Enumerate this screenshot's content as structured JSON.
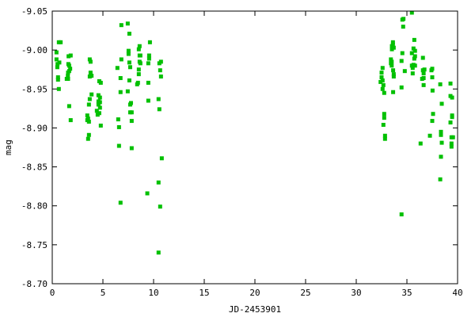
{
  "chart_data": {
    "type": "scatter",
    "title": "",
    "xlabel": "JD-2453901",
    "ylabel": "mag",
    "xlim": [
      0,
      40
    ],
    "ylim": [
      -9.05,
      -8.7
    ],
    "y_inverted": true,
    "grid": false,
    "legend": "none",
    "marker_color": "#00c000",
    "x_ticks": [
      "0",
      "5",
      "10",
      "15",
      "20",
      "25",
      "30",
      "35",
      "40"
    ],
    "x_tick_values": [
      0,
      5,
      10,
      15,
      20,
      25,
      30,
      35,
      40
    ],
    "y_ticks": [
      "-9.05",
      "-9.00",
      "-8.95",
      "-8.90",
      "-8.85",
      "-8.80",
      "-8.75",
      "-8.70"
    ],
    "y_tick_values": [
      -9.05,
      -9.0,
      -8.95,
      -8.9,
      -8.85,
      -8.8,
      -8.75,
      -8.7
    ],
    "points": [
      [
        0.65,
        -9.01
      ],
      [
        0.83,
        -9.01
      ],
      [
        0.42,
        -8.997
      ],
      [
        0.42,
        -8.988
      ],
      [
        0.7,
        -8.984
      ],
      [
        0.52,
        -8.982
      ],
      [
        0.5,
        -8.978
      ],
      [
        0.57,
        -8.965
      ],
      [
        0.57,
        -8.962
      ],
      [
        0.65,
        -8.95
      ],
      [
        1.61,
        -8.992
      ],
      [
        1.82,
        -8.993
      ],
      [
        1.59,
        -8.982
      ],
      [
        1.67,
        -8.98
      ],
      [
        1.77,
        -8.976
      ],
      [
        1.67,
        -8.973
      ],
      [
        1.56,
        -8.971
      ],
      [
        1.54,
        -8.967
      ],
      [
        1.43,
        -8.963
      ],
      [
        1.56,
        -8.963
      ],
      [
        1.67,
        -8.928
      ],
      [
        1.82,
        -8.91
      ],
      [
        3.7,
        -8.988
      ],
      [
        3.78,
        -8.985
      ],
      [
        3.78,
        -8.971
      ],
      [
        3.7,
        -8.966
      ],
      [
        3.88,
        -8.967
      ],
      [
        4.64,
        -8.96
      ],
      [
        4.79,
        -8.958
      ],
      [
        3.88,
        -8.943
      ],
      [
        3.7,
        -8.937
      ],
      [
        3.62,
        -8.93
      ],
      [
        4.56,
        -8.942
      ],
      [
        4.71,
        -8.939
      ],
      [
        4.56,
        -8.934
      ],
      [
        4.71,
        -8.933
      ],
      [
        4.56,
        -8.93
      ],
      [
        4.71,
        -8.926
      ],
      [
        4.4,
        -8.922
      ],
      [
        4.64,
        -8.919
      ],
      [
        4.48,
        -8.917
      ],
      [
        3.46,
        -8.916
      ],
      [
        3.54,
        -8.912
      ],
      [
        3.46,
        -8.91
      ],
      [
        3.62,
        -8.908
      ],
      [
        4.79,
        -8.903
      ],
      [
        3.62,
        -8.891
      ],
      [
        3.54,
        -8.886
      ],
      [
        6.82,
        -9.032
      ],
      [
        7.45,
        -9.034
      ],
      [
        7.61,
        -9.021
      ],
      [
        8.62,
        -9.005
      ],
      [
        8.54,
        -9.001
      ],
      [
        9.64,
        -9.01
      ],
      [
        7.53,
        -8.999
      ],
      [
        7.53,
        -8.995
      ],
      [
        8.62,
        -8.993
      ],
      [
        8.7,
        -8.993
      ],
      [
        9.56,
        -8.993
      ],
      [
        9.56,
        -8.989
      ],
      [
        6.82,
        -8.988
      ],
      [
        8.62,
        -8.985
      ],
      [
        8.7,
        -8.983
      ],
      [
        9.48,
        -8.983
      ],
      [
        7.61,
        -8.984
      ],
      [
        7.69,
        -8.978
      ],
      [
        6.43,
        -8.977
      ],
      [
        8.54,
        -8.975
      ],
      [
        8.54,
        -8.969
      ],
      [
        6.74,
        -8.964
      ],
      [
        7.61,
        -8.961
      ],
      [
        8.46,
        -8.958
      ],
      [
        8.38,
        -8.956
      ],
      [
        9.48,
        -8.958
      ],
      [
        6.74,
        -8.946
      ],
      [
        7.45,
        -8.947
      ],
      [
        10.57,
        -8.983
      ],
      [
        10.73,
        -8.985
      ],
      [
        10.65,
        -8.974
      ],
      [
        10.73,
        -8.966
      ],
      [
        10.49,
        -8.937
      ],
      [
        10.57,
        -8.924
      ],
      [
        9.48,
        -8.935
      ],
      [
        7.77,
        -8.932
      ],
      [
        7.69,
        -8.93
      ],
      [
        7.69,
        -8.92
      ],
      [
        7.84,
        -8.92
      ],
      [
        6.51,
        -8.911
      ],
      [
        7.84,
        -8.909
      ],
      [
        6.59,
        -8.901
      ],
      [
        6.59,
        -8.877
      ],
      [
        7.84,
        -8.874
      ],
      [
        10.81,
        -8.861
      ],
      [
        10.49,
        -8.83
      ],
      [
        9.38,
        -8.816
      ],
      [
        6.74,
        -8.804
      ],
      [
        10.65,
        -8.799
      ],
      [
        10.49,
        -8.74
      ],
      [
        35.49,
        -9.048
      ],
      [
        34.55,
        -9.039
      ],
      [
        34.66,
        -9.04
      ],
      [
        34.63,
        -9.03
      ],
      [
        35.73,
        -9.013
      ],
      [
        33.62,
        -9.01
      ],
      [
        33.62,
        -9.007
      ],
      [
        33.52,
        -9.005
      ],
      [
        33.7,
        -9.003
      ],
      [
        33.52,
        -9.001
      ],
      [
        35.65,
        -9.002
      ],
      [
        35.8,
        -8.999
      ],
      [
        34.55,
        -8.996
      ],
      [
        35.49,
        -8.996
      ],
      [
        35.8,
        -8.992
      ],
      [
        36.58,
        -8.99
      ],
      [
        35.73,
        -8.989
      ],
      [
        33.42,
        -8.988
      ],
      [
        33.5,
        -8.985
      ],
      [
        33.42,
        -8.983
      ],
      [
        33.5,
        -8.98
      ],
      [
        34.47,
        -8.986
      ],
      [
        35.49,
        -8.98
      ],
      [
        35.8,
        -8.98
      ],
      [
        35.65,
        -8.981
      ],
      [
        35.57,
        -8.977
      ],
      [
        35.57,
        -8.97
      ],
      [
        34.79,
        -8.973
      ],
      [
        32.6,
        -8.977
      ],
      [
        32.5,
        -8.971
      ],
      [
        32.5,
        -8.965
      ],
      [
        32.6,
        -8.961
      ],
      [
        32.4,
        -8.959
      ],
      [
        32.68,
        -8.955
      ],
      [
        32.6,
        -8.95
      ],
      [
        32.76,
        -8.945
      ],
      [
        33.64,
        -8.974
      ],
      [
        33.7,
        -8.969
      ],
      [
        33.7,
        -8.966
      ],
      [
        33.64,
        -8.946
      ],
      [
        34.47,
        -8.952
      ],
      [
        36.58,
        -8.974
      ],
      [
        36.73,
        -8.975
      ],
      [
        36.65,
        -8.97
      ],
      [
        36.65,
        -8.964
      ],
      [
        36.5,
        -8.963
      ],
      [
        36.65,
        -8.955
      ],
      [
        37.42,
        -8.974
      ],
      [
        37.5,
        -8.976
      ],
      [
        37.5,
        -8.965
      ],
      [
        37.53,
        -8.948
      ],
      [
        38.29,
        -8.956
      ],
      [
        39.3,
        -8.957
      ],
      [
        39.3,
        -8.941
      ],
      [
        39.46,
        -8.939
      ],
      [
        38.44,
        -8.931
      ],
      [
        37.58,
        -8.918
      ],
      [
        37.5,
        -8.909
      ],
      [
        39.46,
        -8.916
      ],
      [
        39.46,
        -8.914
      ],
      [
        39.3,
        -8.907
      ],
      [
        32.76,
        -8.918
      ],
      [
        32.76,
        -8.913
      ],
      [
        32.68,
        -8.904
      ],
      [
        32.84,
        -8.89
      ],
      [
        32.84,
        -8.886
      ],
      [
        38.36,
        -8.895
      ],
      [
        38.36,
        -8.891
      ],
      [
        37.27,
        -8.89
      ],
      [
        36.35,
        -8.88
      ],
      [
        38.44,
        -8.881
      ],
      [
        39.4,
        -8.888
      ],
      [
        39.55,
        -8.888
      ],
      [
        39.4,
        -8.88
      ],
      [
        39.4,
        -8.876
      ],
      [
        38.36,
        -8.863
      ],
      [
        38.29,
        -8.834
      ],
      [
        34.47,
        -8.789
      ]
    ]
  }
}
